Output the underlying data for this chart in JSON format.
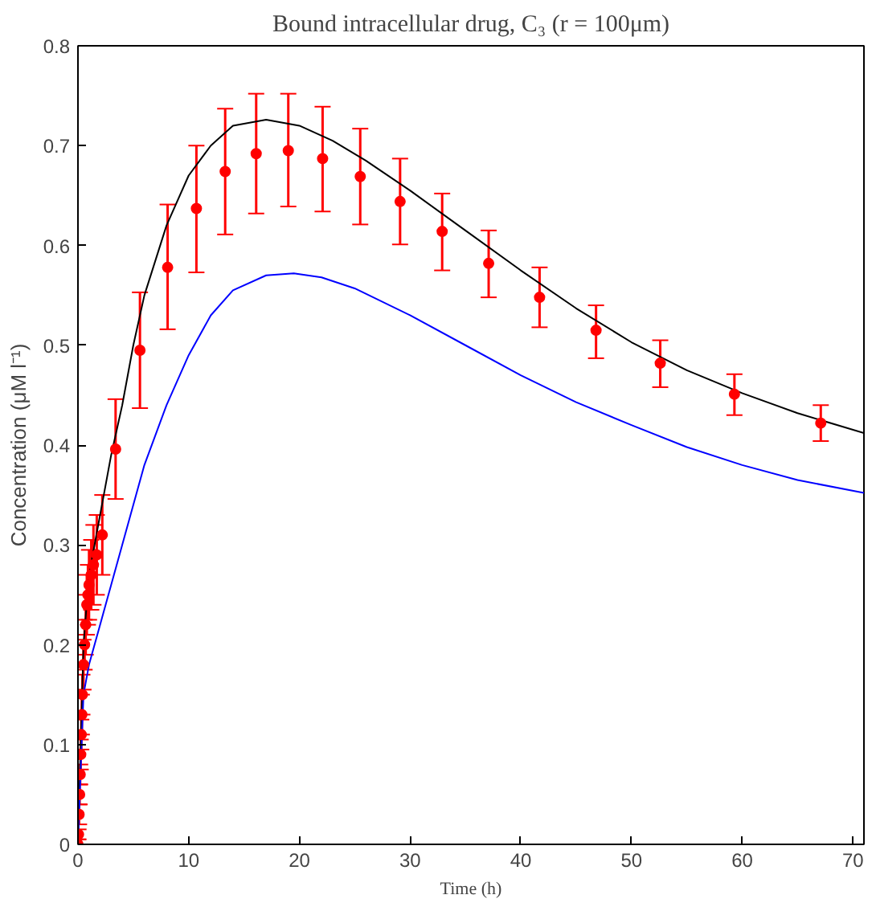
{
  "chart_data": {
    "type": "line",
    "title": "Bound intracellular drug, C₃ (r = 100μm)",
    "xlabel": "Time (h)",
    "ylabel": "Concentration (μM l⁻¹)",
    "xlim": [
      0,
      71
    ],
    "ylim": [
      0,
      0.8
    ],
    "xticks": [
      0,
      10,
      20,
      30,
      40,
      50,
      60,
      70
    ],
    "yticks": [
      0,
      0.1,
      0.2,
      0.3,
      0.4,
      0.5,
      0.6,
      0.7,
      0.8
    ],
    "grid": false,
    "series": [
      {
        "color": "#000000",
        "x": [
          0,
          0.5,
          1,
          2,
          3,
          4,
          5,
          6,
          8,
          10,
          12,
          14,
          17,
          20,
          23,
          26,
          30,
          35,
          40,
          45,
          50,
          55,
          60,
          65,
          71
        ],
        "values": [
          0,
          0.2,
          0.27,
          0.33,
          0.39,
          0.44,
          0.5,
          0.55,
          0.62,
          0.67,
          0.7,
          0.72,
          0.726,
          0.72,
          0.705,
          0.685,
          0.655,
          0.615,
          0.575,
          0.537,
          0.503,
          0.475,
          0.452,
          0.432,
          0.412
        ]
      },
      {
        "type": "line",
        "color": "#0000ff",
        "x": [
          0,
          0.5,
          1,
          2,
          3,
          4,
          6,
          8,
          10,
          12,
          14,
          17,
          19.5,
          22,
          25,
          30,
          35,
          40,
          45,
          50,
          55,
          60,
          65,
          71
        ],
        "values": [
          0,
          0.15,
          0.18,
          0.22,
          0.26,
          0.3,
          0.38,
          0.44,
          0.49,
          0.53,
          0.555,
          0.57,
          0.572,
          0.568,
          0.557,
          0.53,
          0.5,
          0.47,
          0.443,
          0.42,
          0.398,
          0.38,
          0.365,
          0.352
        ]
      },
      {
        "type": "scatter",
        "color": "#ff0000",
        "marker": "circle",
        "x": [
          0,
          0.05,
          0.1,
          0.15,
          0.2,
          0.25,
          0.3,
          0.35,
          0.4,
          0.5,
          0.6,
          0.7,
          0.8,
          0.9,
          1.0,
          1.2,
          1.4,
          1.7,
          2.2,
          3.4,
          5.6,
          8.1,
          10.7,
          13.3,
          16.1,
          19.0,
          22.1,
          25.5,
          29.1,
          32.9,
          37.1,
          41.7,
          46.8,
          52.6,
          59.3,
          67.1
        ],
        "values": [
          0,
          0.01,
          0.03,
          0.05,
          0.07,
          0.09,
          0.11,
          0.13,
          0.15,
          0.18,
          0.2,
          0.22,
          0.24,
          0.25,
          0.26,
          0.27,
          0.28,
          0.29,
          0.31,
          0.396,
          0.495,
          0.578,
          0.637,
          0.674,
          0.692,
          0.695,
          0.687,
          0.669,
          0.644,
          0.614,
          0.582,
          0.548,
          0.515,
          0.482,
          0.451,
          0.422
        ],
        "errors": [
          0.005,
          0.005,
          0.01,
          0.01,
          0.01,
          0.015,
          0.015,
          0.02,
          0.02,
          0.025,
          0.025,
          0.03,
          0.03,
          0.03,
          0.035,
          0.035,
          0.04,
          0.04,
          0.04,
          [
            0.346,
            0.446
          ],
          [
            0.437,
            0.553
          ],
          [
            0.516,
            0.641
          ],
          [
            0.573,
            0.7
          ],
          [
            0.611,
            0.737
          ],
          [
            0.632,
            0.752
          ],
          [
            0.639,
            0.752
          ],
          [
            0.634,
            0.739
          ],
          [
            0.621,
            0.717
          ],
          [
            0.601,
            0.687
          ],
          [
            0.575,
            0.652
          ],
          [
            0.548,
            0.615
          ],
          [
            0.518,
            0.578
          ],
          [
            0.487,
            0.54
          ],
          [
            0.458,
            0.505
          ],
          [
            0.43,
            0.471
          ],
          [
            0.404,
            0.44
          ]
        ]
      }
    ]
  }
}
